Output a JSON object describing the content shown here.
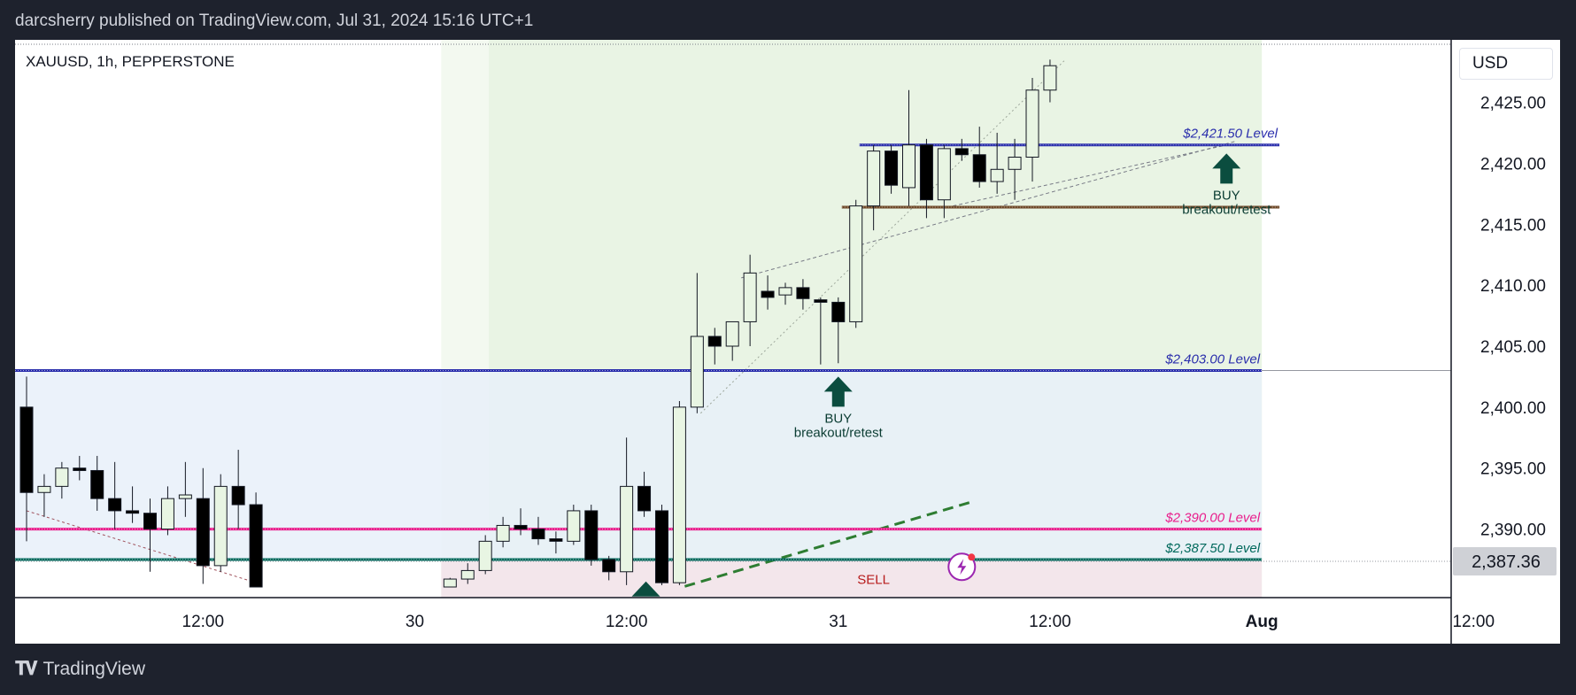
{
  "header": {
    "publisher_line": "darcsherry published on TradingView.com, Jul 31, 2024 15:16 UTC+1"
  },
  "footer": {
    "brand": "TradingView",
    "logo_icon": "tradingview-logo-icon"
  },
  "chart_data": {
    "type": "candlestick",
    "symbol_label": "XAUUSD, 1h, PEPPERSTONE",
    "currency": "USD",
    "y_axis": {
      "min": 2385.25,
      "max": 2429.25,
      "ticks": [
        2425.0,
        2420.0,
        2415.0,
        2410.0,
        2405.0,
        2400.0,
        2395.0,
        2390.0
      ],
      "tick_labels": [
        "2,425.00",
        "2,420.00",
        "2,415.00",
        "2,410.00",
        "2,405.00",
        "2,400.00",
        "2,395.00",
        "2,390.00"
      ]
    },
    "last_price": {
      "value": 2387.36,
      "label": "2,387.36"
    },
    "time_axis": {
      "labels": [
        {
          "text": "12:00",
          "index": 10,
          "bold": false
        },
        {
          "text": "30",
          "index": 22,
          "bold": false
        },
        {
          "text": "12:00",
          "index": 34,
          "bold": false
        },
        {
          "text": "31",
          "index": 46,
          "bold": false
        },
        {
          "text": "12:00",
          "index": 58,
          "bold": false
        },
        {
          "text": "Aug",
          "index": 70,
          "bold": true
        },
        {
          "text": "12:00",
          "index": 82,
          "bold": false
        }
      ]
    },
    "candles": [
      {
        "i": 0,
        "o": 2400.0,
        "h": 2402.5,
        "l": 2389.0,
        "c": 2393.0
      },
      {
        "i": 1,
        "o": 2393.0,
        "h": 2394.5,
        "l": 2391.0,
        "c": 2393.5
      },
      {
        "i": 2,
        "o": 2393.5,
        "h": 2395.5,
        "l": 2392.5,
        "c": 2395.0
      },
      {
        "i": 3,
        "o": 2395.0,
        "h": 2396.0,
        "l": 2394.0,
        "c": 2394.8
      },
      {
        "i": 4,
        "o": 2394.8,
        "h": 2396.0,
        "l": 2391.5,
        "c": 2392.5
      },
      {
        "i": 5,
        "o": 2392.5,
        "h": 2395.5,
        "l": 2390.0,
        "c": 2391.5
      },
      {
        "i": 6,
        "o": 2391.5,
        "h": 2393.5,
        "l": 2390.5,
        "c": 2391.3
      },
      {
        "i": 7,
        "o": 2391.3,
        "h": 2392.5,
        "l": 2386.5,
        "c": 2390.0
      },
      {
        "i": 8,
        "o": 2390.0,
        "h": 2393.5,
        "l": 2389.5,
        "c": 2392.5
      },
      {
        "i": 9,
        "o": 2392.5,
        "h": 2395.5,
        "l": 2391.0,
        "c": 2392.8
      },
      {
        "i": 10,
        "o": 2392.5,
        "h": 2395.0,
        "l": 2385.5,
        "c": 2387.0
      },
      {
        "i": 11,
        "o": 2387.0,
        "h": 2394.5,
        "l": 2386.5,
        "c": 2393.5
      },
      {
        "i": 12,
        "o": 2393.5,
        "h": 2396.5,
        "l": 2390.0,
        "c": 2392.0
      },
      {
        "i": 13,
        "o": 2392.0,
        "h": 2393.0,
        "l": 2385.25,
        "c": 2385.25
      },
      {
        "i": 24,
        "o": 2385.25,
        "h": 2386.0,
        "l": 2385.25,
        "c": 2385.9
      },
      {
        "i": 25,
        "o": 2385.9,
        "h": 2387.2,
        "l": 2385.5,
        "c": 2386.6
      },
      {
        "i": 26,
        "o": 2386.6,
        "h": 2389.5,
        "l": 2386.3,
        "c": 2389.0
      },
      {
        "i": 27,
        "o": 2389.0,
        "h": 2391.0,
        "l": 2388.5,
        "c": 2390.3
      },
      {
        "i": 28,
        "o": 2390.3,
        "h": 2391.7,
        "l": 2389.5,
        "c": 2390.0
      },
      {
        "i": 29,
        "o": 2390.0,
        "h": 2391.0,
        "l": 2388.7,
        "c": 2389.2
      },
      {
        "i": 30,
        "o": 2389.2,
        "h": 2389.8,
        "l": 2388.0,
        "c": 2389.0
      },
      {
        "i": 31,
        "o": 2389.0,
        "h": 2392.0,
        "l": 2388.7,
        "c": 2391.5
      },
      {
        "i": 32,
        "o": 2391.5,
        "h": 2392.0,
        "l": 2387.0,
        "c": 2387.5
      },
      {
        "i": 33,
        "o": 2387.5,
        "h": 2387.8,
        "l": 2385.8,
        "c": 2386.5
      },
      {
        "i": 34,
        "o": 2386.5,
        "h": 2397.5,
        "l": 2385.4,
        "c": 2393.5
      },
      {
        "i": 35,
        "o": 2393.5,
        "h": 2394.7,
        "l": 2391.0,
        "c": 2391.5
      },
      {
        "i": 36,
        "o": 2391.5,
        "h": 2392.0,
        "l": 2385.4,
        "c": 2385.6
      },
      {
        "i": 37,
        "o": 2385.6,
        "h": 2400.5,
        "l": 2385.4,
        "c": 2400.0
      },
      {
        "i": 38,
        "o": 2400.0,
        "h": 2411.0,
        "l": 2399.5,
        "c": 2405.8
      },
      {
        "i": 39,
        "o": 2405.8,
        "h": 2406.5,
        "l": 2403.5,
        "c": 2405.0
      },
      {
        "i": 40,
        "o": 2405.0,
        "h": 2407.0,
        "l": 2403.8,
        "c": 2407.0
      },
      {
        "i": 41,
        "o": 2407.0,
        "h": 2412.5,
        "l": 2405.0,
        "c": 2411.0
      },
      {
        "i": 42,
        "o": 2409.5,
        "h": 2410.8,
        "l": 2408.0,
        "c": 2409.0
      },
      {
        "i": 43,
        "o": 2409.2,
        "h": 2410.2,
        "l": 2408.4,
        "c": 2409.8
      },
      {
        "i": 44,
        "o": 2409.8,
        "h": 2410.5,
        "l": 2408.0,
        "c": 2408.9
      },
      {
        "i": 45,
        "o": 2408.8,
        "h": 2409.0,
        "l": 2403.5,
        "c": 2408.6
      },
      {
        "i": 46,
        "o": 2408.6,
        "h": 2409.0,
        "l": 2403.6,
        "c": 2407.0
      },
      {
        "i": 47,
        "o": 2407.0,
        "h": 2417.0,
        "l": 2406.5,
        "c": 2416.5
      },
      {
        "i": 48,
        "o": 2416.5,
        "h": 2421.5,
        "l": 2414.5,
        "c": 2421.0
      },
      {
        "i": 49,
        "o": 2421.0,
        "h": 2421.5,
        "l": 2417.5,
        "c": 2418.2
      },
      {
        "i": 50,
        "o": 2418.0,
        "h": 2426.0,
        "l": 2416.5,
        "c": 2421.5
      },
      {
        "i": 51,
        "o": 2421.5,
        "h": 2422.0,
        "l": 2415.5,
        "c": 2417.0
      },
      {
        "i": 52,
        "o": 2417.0,
        "h": 2421.5,
        "l": 2415.5,
        "c": 2421.2
      },
      {
        "i": 53,
        "o": 2421.2,
        "h": 2422.0,
        "l": 2420.2,
        "c": 2420.7
      },
      {
        "i": 54,
        "o": 2420.7,
        "h": 2423.0,
        "l": 2418.0,
        "c": 2418.5
      },
      {
        "i": 55,
        "o": 2418.5,
        "h": 2422.5,
        "l": 2417.5,
        "c": 2419.5
      },
      {
        "i": 56,
        "o": 2419.5,
        "h": 2422.0,
        "l": 2417.0,
        "c": 2420.5
      },
      {
        "i": 57,
        "o": 2420.5,
        "h": 2427.0,
        "l": 2418.5,
        "c": 2426.0
      },
      {
        "i": 58,
        "o": 2426.0,
        "h": 2428.5,
        "l": 2425.0,
        "c": 2428.0
      }
    ],
    "levels": [
      {
        "label": "$2,421.50 Level",
        "price": 2421.5,
        "color": "#2a2eac",
        "start": 47.2,
        "end": 71
      },
      {
        "label": "$2,403.00 Level",
        "price": 2403.0,
        "color": "#2a2eac",
        "start": -1,
        "end": 70
      },
      {
        "label": "$2,390.00 Level",
        "price": 2390.0,
        "color": "#e91e8c",
        "start": -1,
        "end": 70
      },
      {
        "label": "$2,387.50 Level",
        "price": 2387.5,
        "color": "#00695c",
        "start": -1,
        "end": 70
      },
      {
        "label": "",
        "price": 2416.4,
        "color": "#6b4423",
        "start": 46.2,
        "end": 71
      }
    ],
    "annotations": [
      {
        "line1": "BUY",
        "line2": "breakout/retest",
        "index": 46,
        "price": 2402.5
      },
      {
        "line1": "BUY",
        "line2": "breakout/retest",
        "index": 68,
        "price": 2420.8
      },
      {
        "line1": "SELL",
        "line2": "",
        "index": 48,
        "price": 2385.5
      }
    ],
    "colors": {
      "up_body": "#e8f5e3",
      "down_body": "#000000",
      "wick": "#131722",
      "zone_green": "#e9f4e4",
      "zone_blue": "#e8f0f9",
      "zone_red": "#f3e6eb",
      "axis_text": "#131722",
      "level_blue": "#2a2eac",
      "level_pink": "#e91e8c",
      "level_teal": "#00695c",
      "level_brown": "#6b4423",
      "arrow_green": "#0b4d3f",
      "sell_text": "#b71c1c"
    },
    "grid": false,
    "flash_icon": "lightning-icon"
  }
}
